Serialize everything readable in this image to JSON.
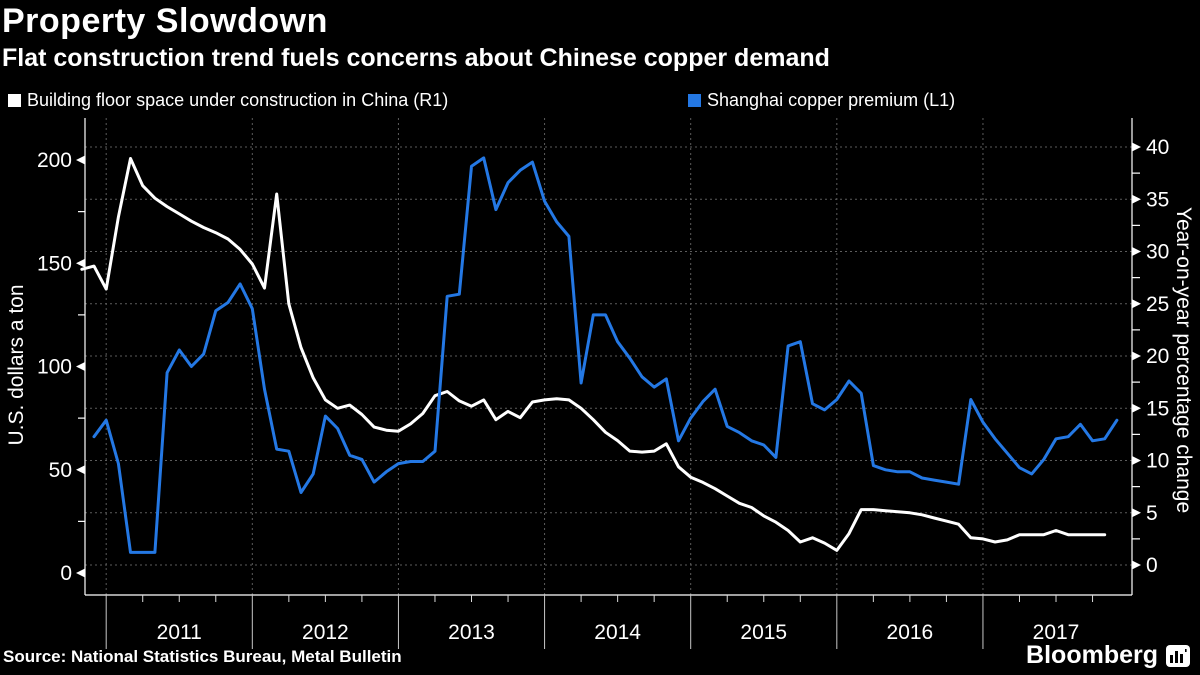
{
  "header": {
    "title": "Property Slowdown",
    "subtitle": "Flat construction trend fuels concerns about Chinese copper demand"
  },
  "legend": [
    {
      "label": "Building floor space under construction in China (R1)",
      "color": "#ffffff"
    },
    {
      "label": "Shanghai copper premium (L1)",
      "color": "#2478e4"
    }
  ],
  "footer": {
    "source": "Source: National Statistics Bureau, Metal Bulletin",
    "brand": "Bloomberg"
  },
  "colors": {
    "background": "#000000",
    "text": "#ffffff",
    "grid": "#5c5c5c",
    "axis": "#ffffff",
    "year_separator": "#c8c8c8",
    "white_series": "#ffffff",
    "blue_series": "#2478e4"
  },
  "chart_data": {
    "type": "line",
    "title": "Property Slowdown",
    "subtitle": "Flat construction trend fuels concerns about Chinese copper demand",
    "grid": "dotted horizontal and vertical gridlines, legend top-left, dual y-axes",
    "x_axis": {
      "tick_years": [
        2011,
        2012,
        2013,
        2014,
        2015,
        2016,
        2017
      ],
      "range": [
        2010.855,
        2018.02
      ],
      "minor_tick": "quarterly"
    },
    "left_axis": {
      "label": "U.S. dollars a ton",
      "ticks": [
        0,
        50,
        100,
        150,
        200
      ],
      "minor_step": 25,
      "range": [
        -10.7,
        220
      ]
    },
    "right_axis": {
      "label": "Year-on-year percentage change",
      "ticks": [
        0,
        5,
        10,
        15,
        20,
        25,
        30,
        35,
        40
      ],
      "minor_step": 2.5,
      "range": [
        -2.9,
        42.8
      ]
    },
    "series": [
      {
        "name": "Building floor space under construction in China (R1)",
        "axis": "right",
        "color": "#ffffff",
        "start": "2010-11",
        "frequency": "monthly",
        "values": [
          28.3,
          28.6,
          26.4,
          33.3,
          38.9,
          36.3,
          35.1,
          34.3,
          33.6,
          32.9,
          32.3,
          31.8,
          31.2,
          30.2,
          28.8,
          26.5,
          35.5,
          25.0,
          20.8,
          17.9,
          15.8,
          15.0,
          15.3,
          14.4,
          13.2,
          12.9,
          12.8,
          13.5,
          14.5,
          16.2,
          16.6,
          15.7,
          15.2,
          15.8,
          13.9,
          14.7,
          14.1,
          15.6,
          15.8,
          15.9,
          15.8,
          15.0,
          13.9,
          12.7,
          11.9,
          10.9,
          10.8,
          10.9,
          11.6,
          9.4,
          8.4,
          7.9,
          7.3,
          6.6,
          5.9,
          5.5,
          4.7,
          4.1,
          3.3,
          2.2,
          2.6,
          2.1,
          1.4,
          3.0,
          5.3,
          5.3,
          5.2,
          5.1,
          5.0,
          4.8,
          4.5,
          4.2,
          3.9,
          2.6,
          2.5,
          2.2,
          2.4,
          2.9,
          2.9,
          2.9,
          3.3,
          2.9,
          2.9,
          2.9,
          2.9
        ]
      },
      {
        "name": "Shanghai copper premium (L1)",
        "axis": "left",
        "color": "#2478e4",
        "start": "2010-12",
        "frequency": "monthly",
        "values": [
          66,
          74,
          53,
          10,
          10,
          10,
          97,
          108,
          100,
          106,
          127,
          131,
          140,
          128,
          89,
          60,
          59,
          39,
          48,
          76,
          70,
          57,
          55,
          44,
          49,
          53,
          54,
          54,
          59,
          134,
          135,
          197,
          201,
          176,
          189,
          195,
          199,
          180,
          170,
          163,
          92,
          125,
          125,
          112,
          104,
          95,
          90,
          94,
          64,
          75,
          83,
          89,
          71,
          68,
          64,
          62,
          56,
          110,
          112,
          82,
          79,
          84,
          93,
          87,
          52,
          50,
          49,
          49,
          46,
          45,
          44,
          43,
          84,
          73,
          65,
          58,
          51,
          48,
          55,
          65,
          66,
          72,
          64,
          65,
          74
        ]
      }
    ]
  }
}
